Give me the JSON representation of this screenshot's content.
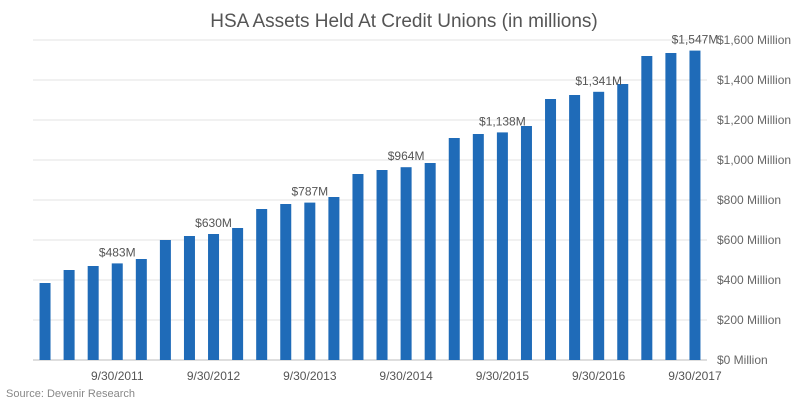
{
  "chart_data": {
    "type": "bar",
    "title": "HSA Assets Held At Credit Unions (in millions)",
    "source": "Source: Devenir Research",
    "bar_color": "#1f6bb8",
    "grid": true,
    "ylim": [
      0,
      1600
    ],
    "y_ticks": [
      0,
      200,
      400,
      600,
      800,
      1000,
      1200,
      1400,
      1600
    ],
    "y_tick_labels": [
      "$0 Million",
      "$200 Million",
      "$400 Million",
      "$600 Million",
      "$800 Million",
      "$1,000 Million",
      "$1,200 Million",
      "$1,400 Million",
      "$1,600 Million"
    ],
    "x_tick_labels": [
      "9/30/2011",
      "9/30/2012",
      "9/30/2013",
      "9/30/2014",
      "9/30/2015",
      "9/30/2016",
      "9/30/2017"
    ],
    "x_tick_indices": [
      3,
      7,
      11,
      15,
      19,
      23,
      27
    ],
    "values": [
      385,
      450,
      470,
      483,
      505,
      600,
      620,
      630,
      660,
      755,
      780,
      787,
      815,
      930,
      950,
      964,
      985,
      1110,
      1130,
      1138,
      1170,
      1305,
      1325,
      1341,
      1380,
      1520,
      1535,
      1547
    ],
    "data_labels": [
      {
        "index": 3,
        "text": "$483M"
      },
      {
        "index": 7,
        "text": "$630M"
      },
      {
        "index": 11,
        "text": "$787M"
      },
      {
        "index": 15,
        "text": "$964M"
      },
      {
        "index": 19,
        "text": "$1,138M"
      },
      {
        "index": 23,
        "text": "$1,341M"
      },
      {
        "index": 27,
        "text": "$1,547M"
      }
    ]
  }
}
